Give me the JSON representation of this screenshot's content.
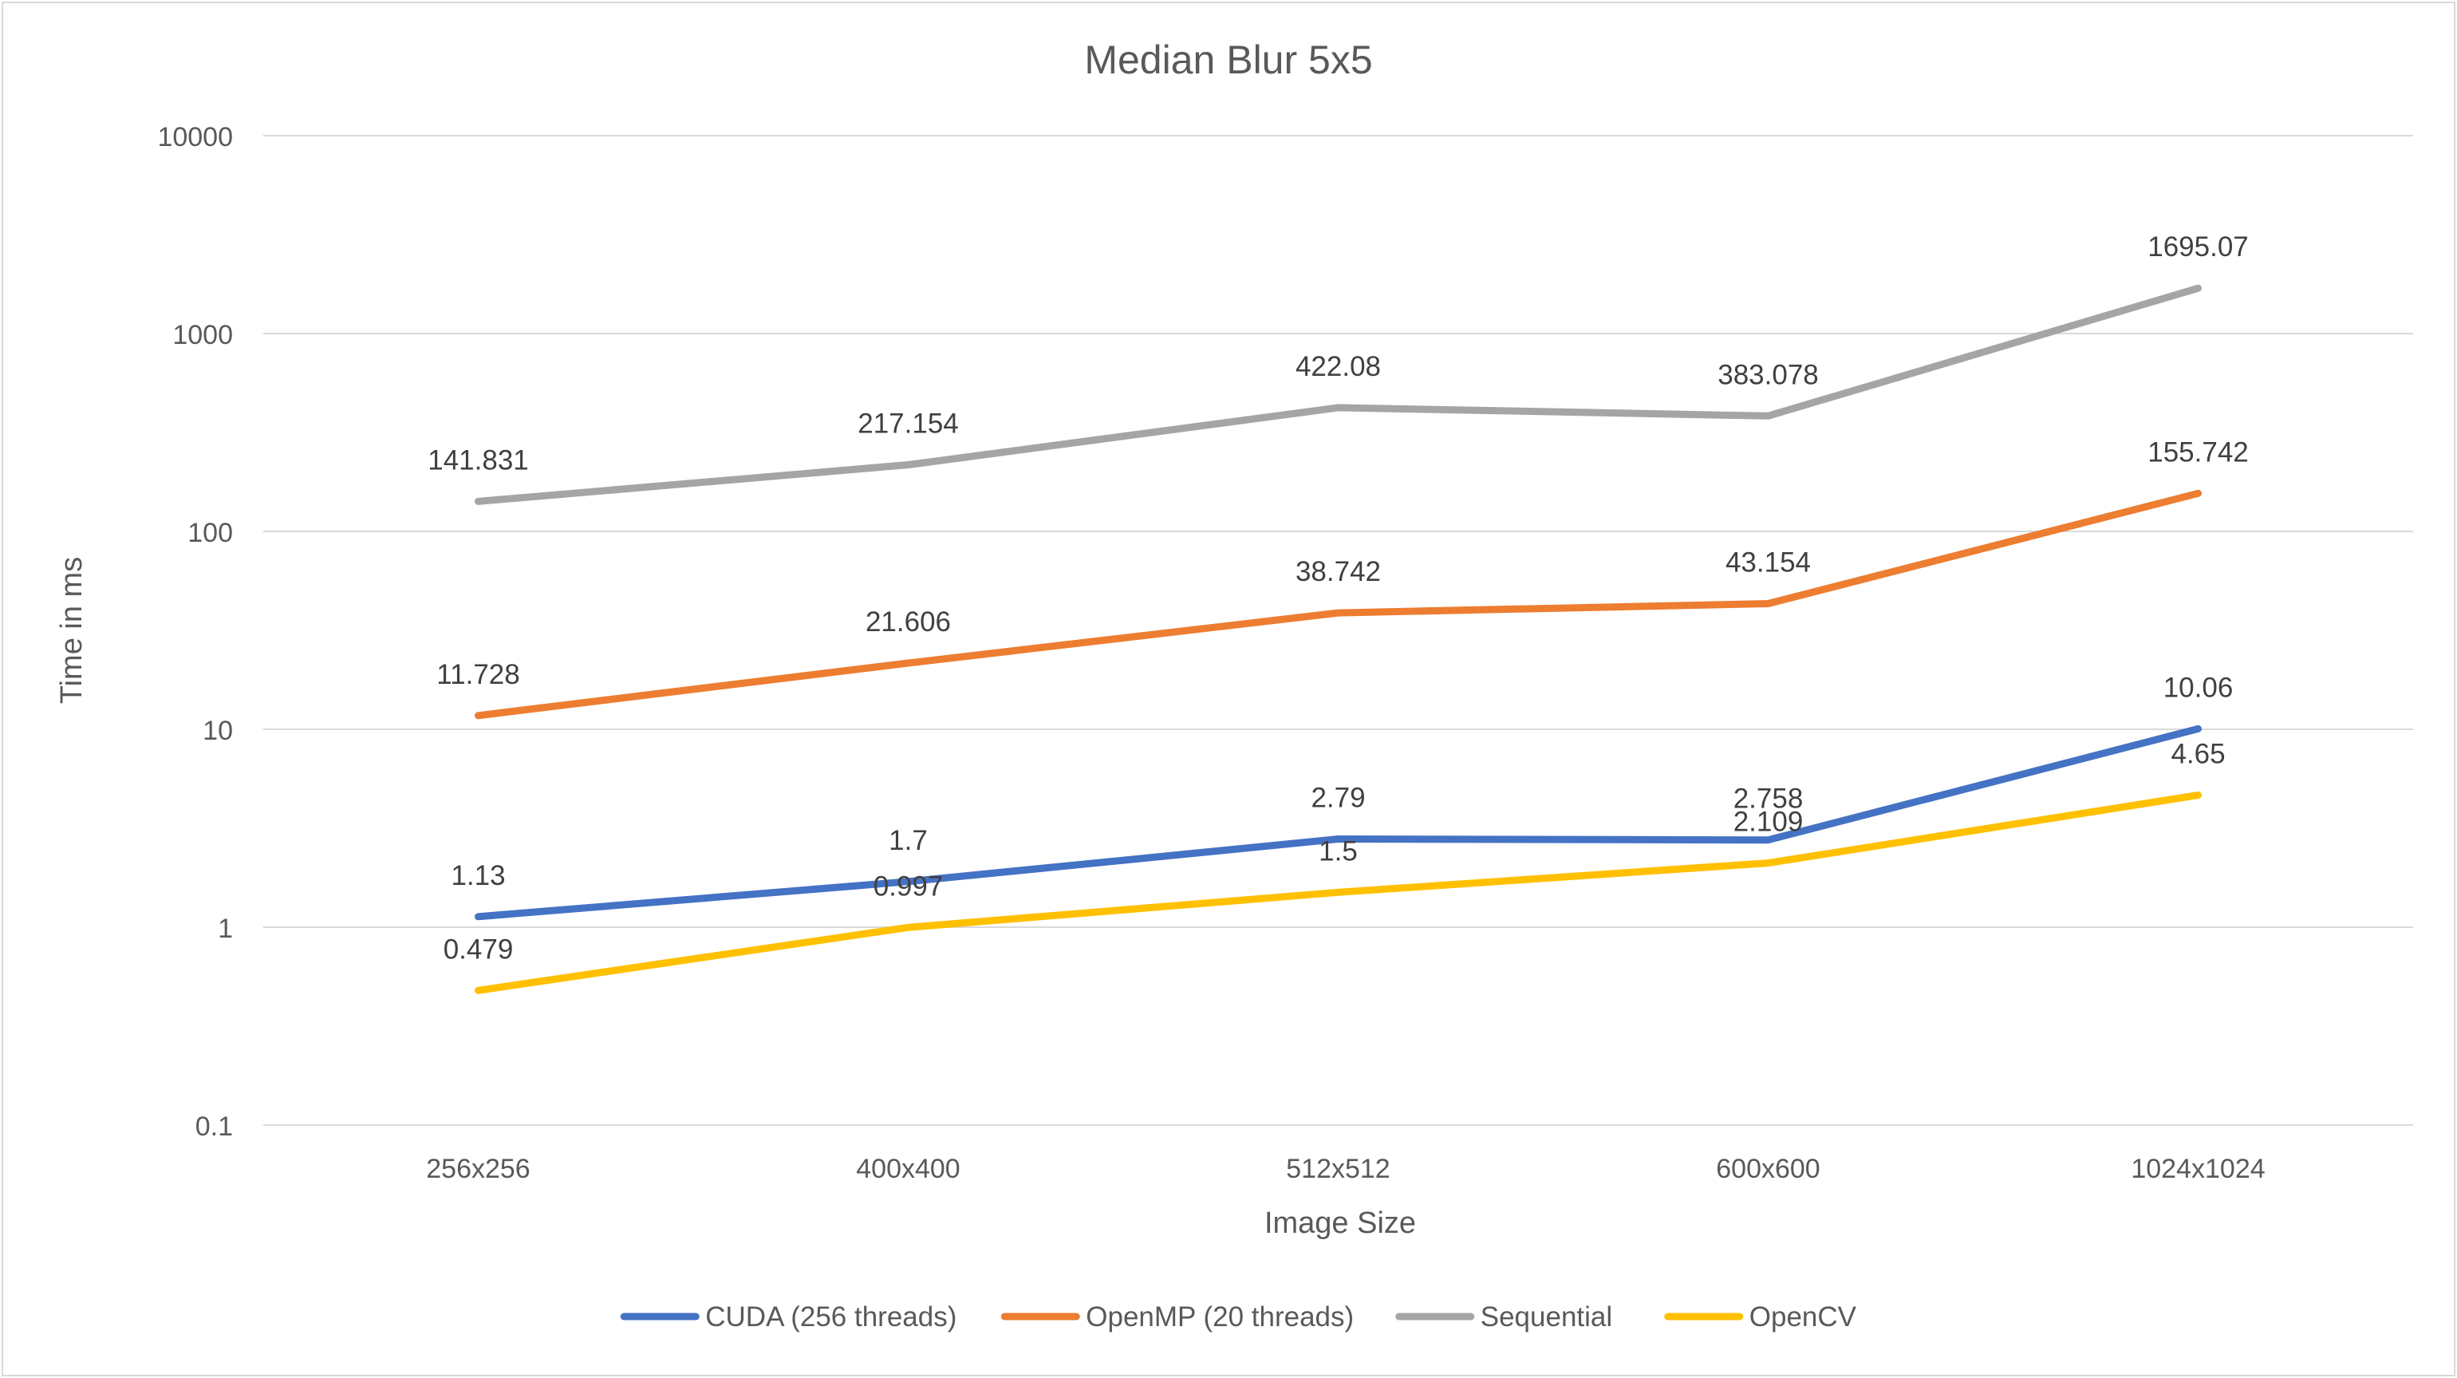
{
  "chart_data": {
    "type": "line",
    "title": "Median Blur 5x5",
    "xlabel": "Image Size",
    "ylabel": "Time in ms",
    "yscale": "log",
    "ylim": [
      0.1,
      10000
    ],
    "yticks": [
      "0.1",
      "1",
      "10",
      "100",
      "1000",
      "10000"
    ],
    "grid": true,
    "legend_position": "bottom",
    "categories": [
      "256x256",
      "400x400",
      "512x512",
      "600x600",
      "1024x1024"
    ],
    "series": [
      {
        "name": "CUDA (256 threads)",
        "color": "#4472C4",
        "values": [
          1.13,
          1.7,
          2.79,
          2.758,
          10.06
        ],
        "labels": [
          "1.13",
          "1.7",
          "2.79",
          "2.758",
          "10.06"
        ]
      },
      {
        "name": "OpenMP (20 threads)",
        "color": "#ED7D31",
        "values": [
          11.728,
          21.606,
          38.742,
          43.154,
          155.742
        ],
        "labels": [
          "11.728",
          "21.606",
          "38.742",
          "43.154",
          "155.742"
        ]
      },
      {
        "name": "Sequential",
        "color": "#A5A5A5",
        "values": [
          141.831,
          217.154,
          422.08,
          383.078,
          1695.07
        ],
        "labels": [
          "141.831",
          "217.154",
          "422.08",
          "383.078",
          "1695.07"
        ]
      },
      {
        "name": "OpenCV",
        "color": "#FFC000",
        "values": [
          0.479,
          0.997,
          1.5,
          2.109,
          4.65
        ],
        "labels": [
          "0.479",
          "0.997",
          "1.5",
          "2.109",
          "4.65"
        ]
      }
    ]
  }
}
